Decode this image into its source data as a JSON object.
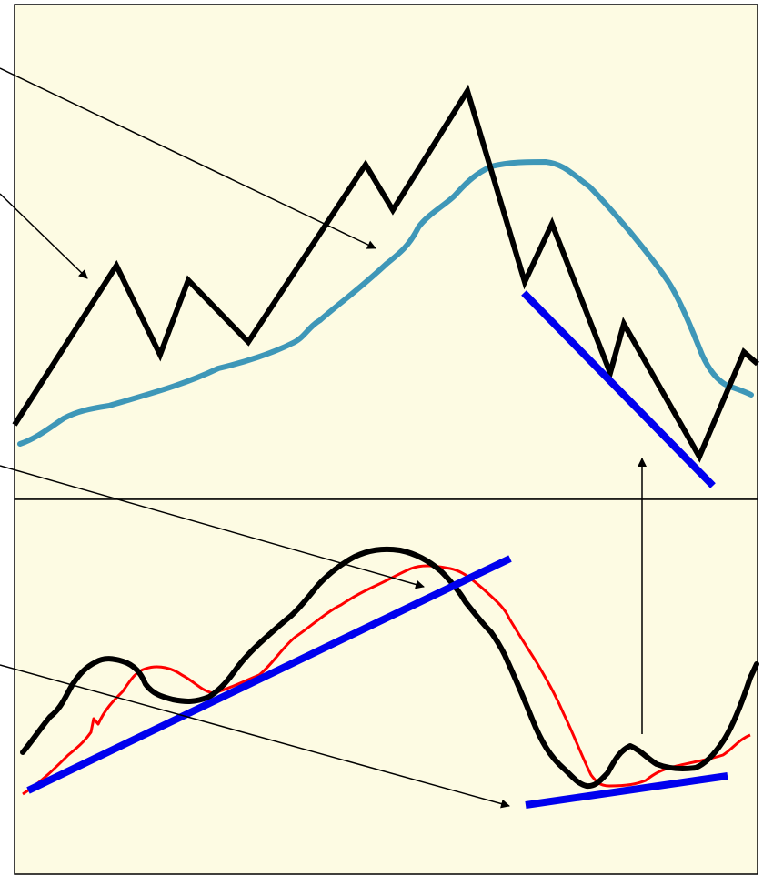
{
  "diagram": {
    "panels": [
      "price-panel",
      "indicator-panel"
    ],
    "colors": {
      "background": "#fdfbe3",
      "frame": "#000000",
      "price_line": "#000000",
      "moving_average": "#3e97b8",
      "oscillator": "#000000",
      "signal_line": "#ff0000",
      "trendline": "#0000ee",
      "arrow": "#000000"
    },
    "labels": []
  }
}
